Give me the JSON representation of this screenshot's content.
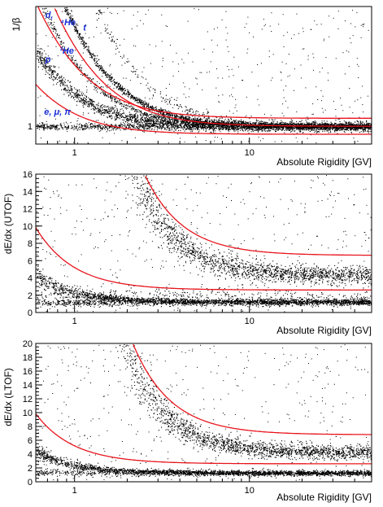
{
  "chart_data": [
    {
      "type": "scatter",
      "title": "",
      "xlabel": "Absolute Rigidity [GV]",
      "ylabel": "1/β",
      "x_scale": "log",
      "xlim": [
        0.6,
        50
      ],
      "ylim": [
        0.8,
        2.35
      ],
      "x_ticks": [
        {
          "value": 1,
          "label": "1"
        },
        {
          "value": 10,
          "label": "10"
        }
      ],
      "y_ticks": [
        {
          "value": 1,
          "label": "1"
        }
      ],
      "grid": false,
      "point_color": "#000000",
      "cut_color": "#e8141c",
      "label_color": "#1a2fd6",
      "species_labels": [
        {
          "text": "d,",
          "x": 0.68,
          "y": 2.22
        },
        {
          "text": "⁴He",
          "x": 0.83,
          "y": 2.14
        },
        {
          "text": "t",
          "x": 1.12,
          "y": 2.08
        },
        {
          "text": "³He",
          "x": 0.82,
          "y": 1.82
        },
        {
          "text": "p",
          "x": 0.68,
          "y": 1.72
        },
        {
          "text": "e, μ, π",
          "x": 0.67,
          "y": 1.13
        }
      ],
      "series": [
        {
          "shape": "band",
          "m": 1.875,
          "spread": 0.015,
          "weight": 0.9
        },
        {
          "shape": "band",
          "m": 1.865,
          "spread": 0.015,
          "weight": 0.5
        },
        {
          "shape": "band",
          "m": 1.4,
          "spread": 0.015,
          "weight": 0.6
        },
        {
          "shape": "band",
          "m": 2.8,
          "spread": 0.02,
          "weight": 0.25
        },
        {
          "shape": "band",
          "m": 0.938,
          "spread": 0.03,
          "weight": 1.5
        },
        {
          "shape": "flat",
          "level": 1.0,
          "spread": 0.02,
          "weight": 0.9
        }
      ],
      "cuts": [
        {
          "type": "mass",
          "m": 1.62,
          "offset": 0
        },
        {
          "type": "mass",
          "m": 1.25,
          "offset": 0.09
        },
        {
          "type": "mass",
          "m": 0.72,
          "offset": -0.09
        }
      ]
    },
    {
      "type": "scatter",
      "title": "",
      "xlabel": "Absolute Rigidity [GV]",
      "ylabel": "dE/dx (UTOF)",
      "x_scale": "log",
      "xlim": [
        0.6,
        50
      ],
      "ylim": [
        0,
        16
      ],
      "x_ticks": [
        {
          "value": 1,
          "label": "1"
        },
        {
          "value": 10,
          "label": "10"
        }
      ],
      "y_ticks": [
        {
          "value": 0,
          "label": "0"
        },
        {
          "value": 2,
          "label": "2"
        },
        {
          "value": 4,
          "label": "4"
        },
        {
          "value": 6,
          "label": "6"
        },
        {
          "value": 8,
          "label": "8"
        },
        {
          "value": 10,
          "label": "10"
        },
        {
          "value": 12,
          "label": "12"
        },
        {
          "value": 14,
          "label": "14"
        },
        {
          "value": 16,
          "label": "16"
        }
      ],
      "grid": false,
      "series": [
        {
          "shape": "dedx",
          "m": 3.73,
          "base": 4.3,
          "spread": 0.12,
          "weight": 1.6,
          "minR": 0.75
        },
        {
          "shape": "dedx",
          "m": 0.938,
          "base": 1.25,
          "spread": 0.12,
          "weight": 1.3,
          "minR": 0.6
        },
        {
          "shape": "flat",
          "level": 1.2,
          "spread": 0.18,
          "weight": 0.7
        },
        {
          "shape": "flat",
          "level": 2.0,
          "spread": 0.25,
          "weight": 0.25
        }
      ],
      "cuts": [
        {
          "type": "dedx",
          "m": 3.0,
          "base": 6.6,
          "offset": 0
        },
        {
          "type": "dedx",
          "m": 1.0,
          "base": 2.6,
          "offset": 0
        }
      ]
    },
    {
      "type": "scatter",
      "title": "",
      "xlabel": "Absolute Rigidity [GV]",
      "ylabel": "dE/dx (LTOF)",
      "x_scale": "log",
      "xlim": [
        0.6,
        50
      ],
      "ylim": [
        0,
        20
      ],
      "x_ticks": [
        {
          "value": 1,
          "label": "1"
        },
        {
          "value": 10,
          "label": "10"
        }
      ],
      "y_ticks": [
        {
          "value": 0,
          "label": "0"
        },
        {
          "value": 2,
          "label": "2"
        },
        {
          "value": 4,
          "label": "4"
        },
        {
          "value": 6,
          "label": "6"
        },
        {
          "value": 8,
          "label": "8"
        },
        {
          "value": 10,
          "label": "10"
        },
        {
          "value": 12,
          "label": "12"
        },
        {
          "value": 14,
          "label": "14"
        },
        {
          "value": 16,
          "label": "16"
        },
        {
          "value": 18,
          "label": "18"
        },
        {
          "value": 20,
          "label": "20"
        }
      ],
      "grid": false,
      "series": [
        {
          "shape": "dedx",
          "m": 3.73,
          "base": 4.3,
          "spread": 0.12,
          "weight": 1.6,
          "minR": 0.8
        },
        {
          "shape": "dedx",
          "m": 0.938,
          "base": 1.3,
          "spread": 0.12,
          "weight": 1.5,
          "minR": 0.6
        },
        {
          "shape": "flat",
          "level": 1.3,
          "spread": 0.18,
          "weight": 0.5
        }
      ],
      "cuts": [
        {
          "type": "dedx",
          "m": 3.0,
          "base": 6.8,
          "offset": 0
        },
        {
          "type": "dedx",
          "m": 1.0,
          "base": 2.6,
          "offset": 0
        }
      ]
    }
  ]
}
